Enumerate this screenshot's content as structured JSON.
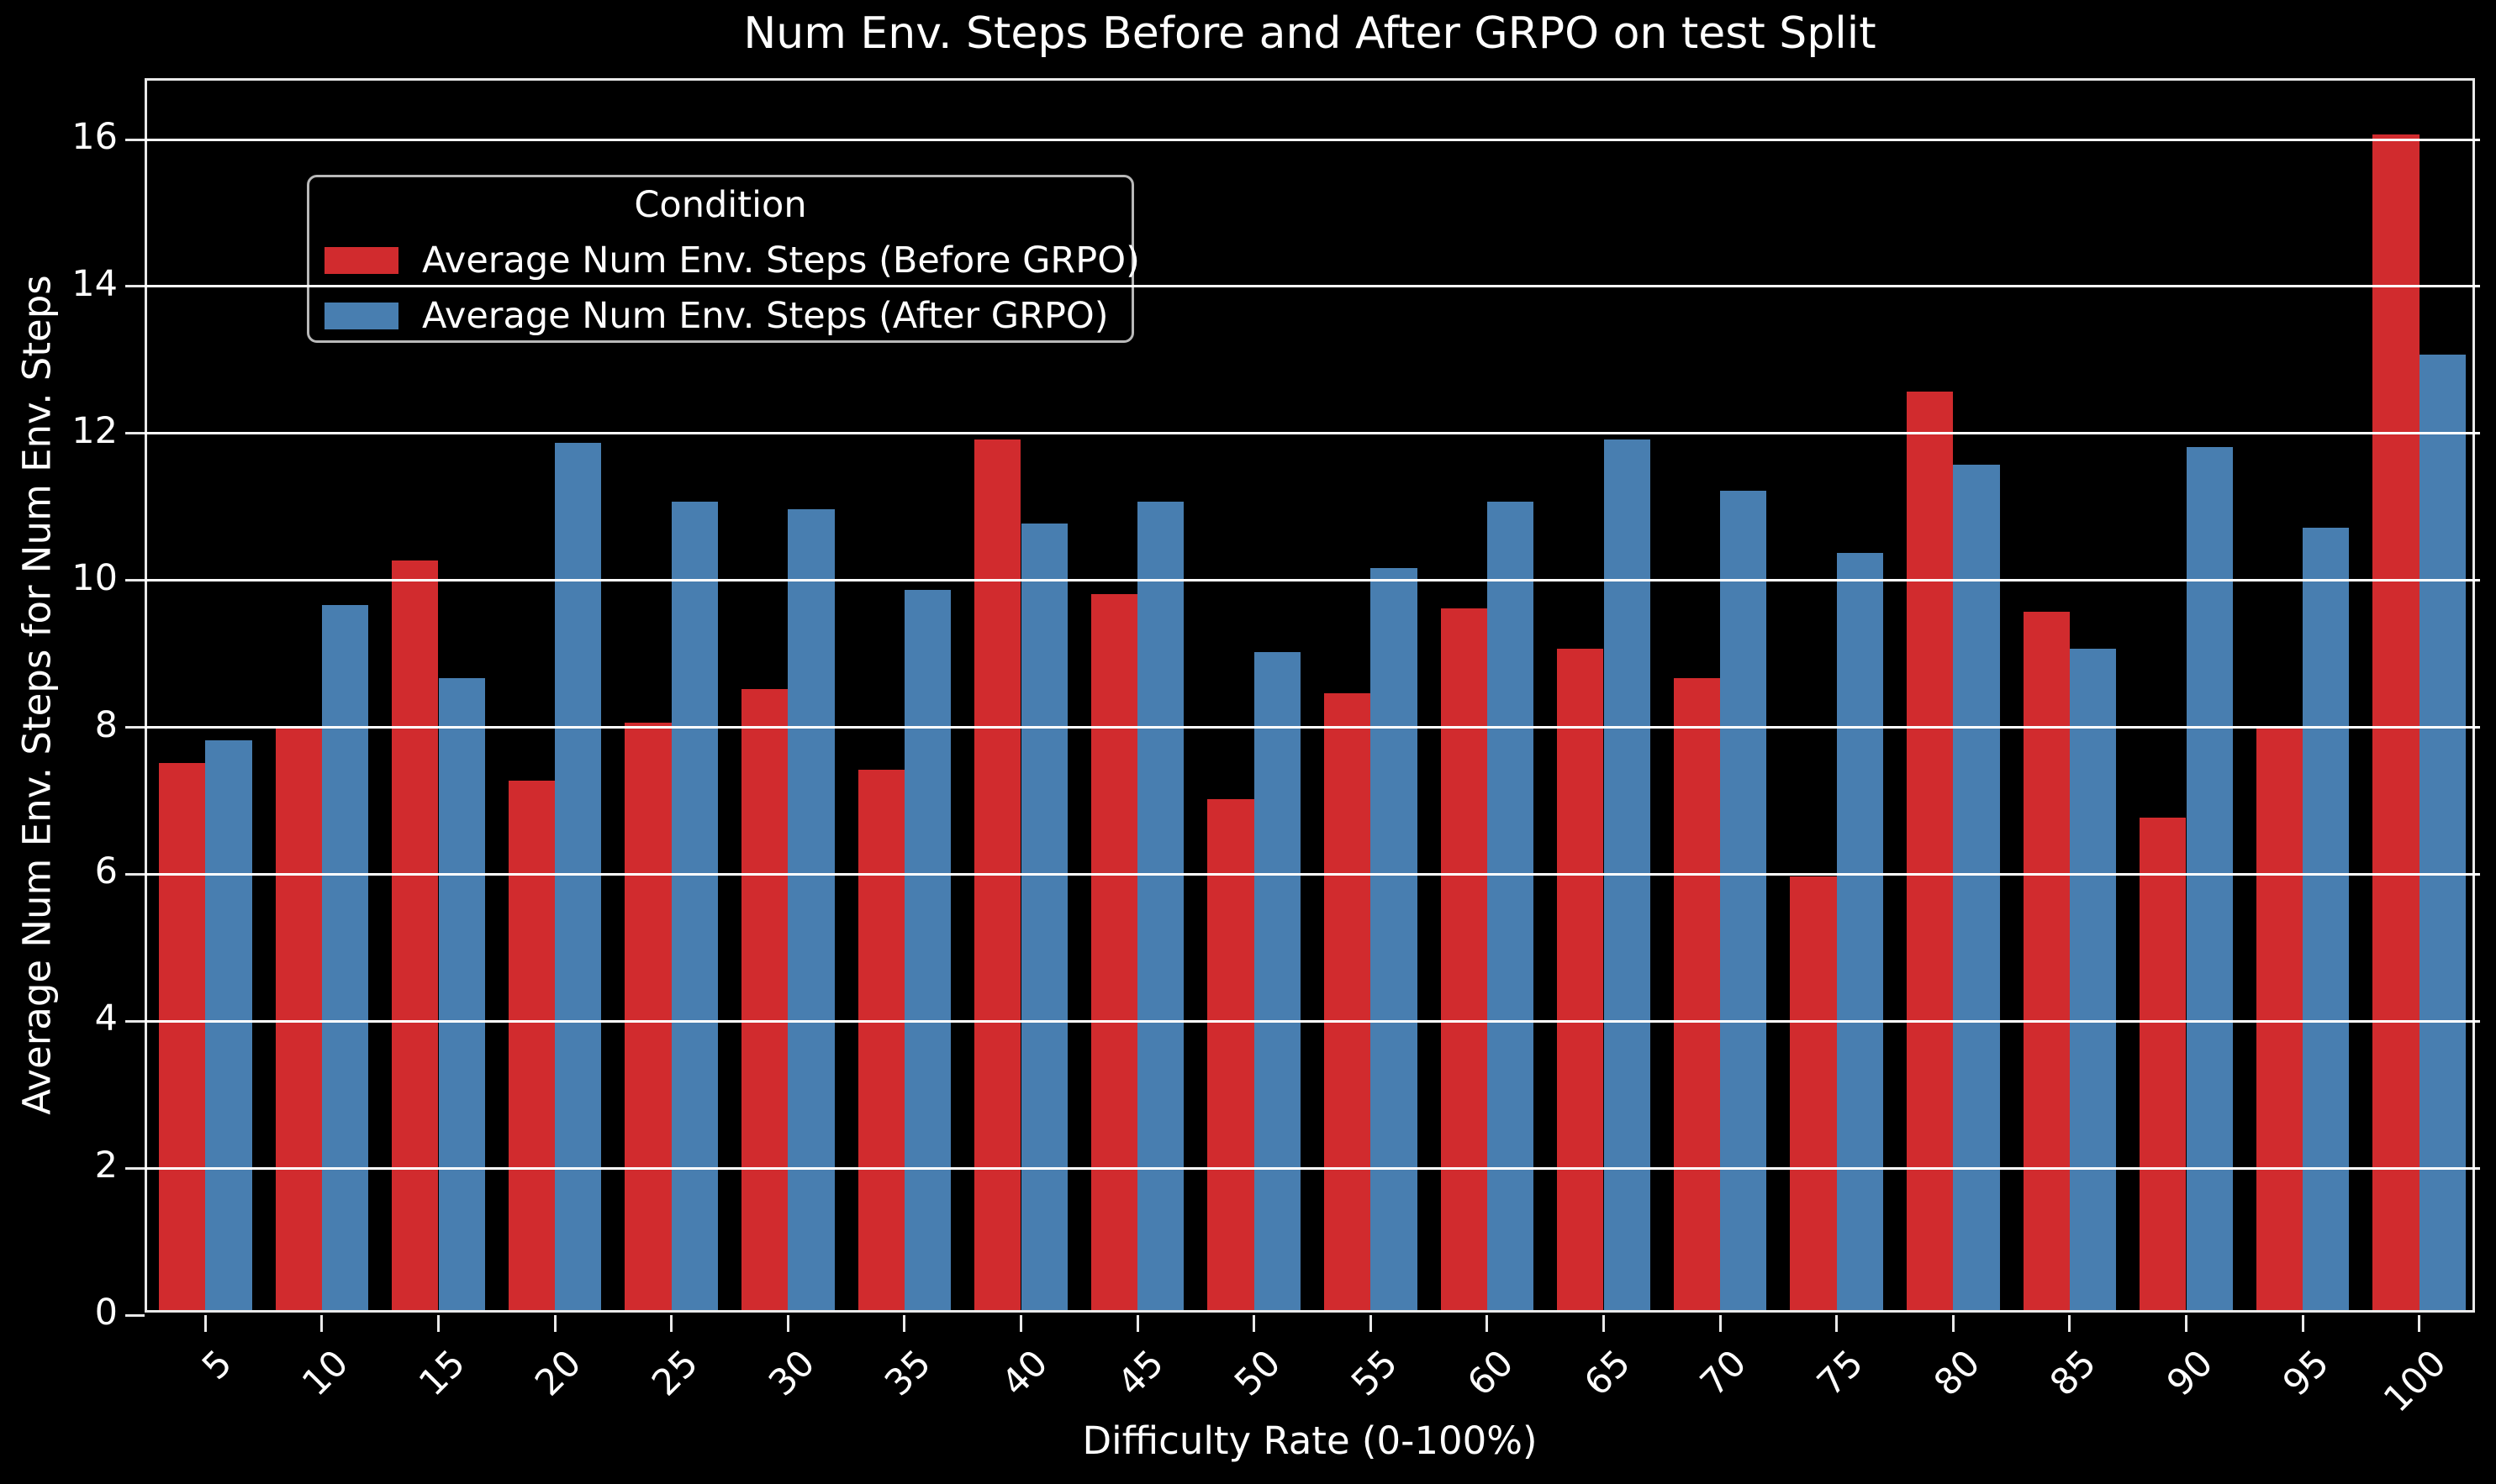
{
  "page": {
    "background": "#000000",
    "text_color": "#ffffff",
    "grid_color": "#ffffff"
  },
  "chart_data": {
    "type": "bar",
    "title": "Num Env. Steps Before and After GRPO on test Split",
    "xlabel": "Difficulty Rate (0-100%)",
    "ylabel": "Average Num Env. Steps for Num Env. Steps",
    "legend_title": "Condition",
    "legend_position": "upper left",
    "grid": true,
    "grid_above_bars": true,
    "categories": [
      5,
      10,
      15,
      20,
      25,
      30,
      35,
      40,
      45,
      50,
      55,
      60,
      65,
      70,
      75,
      80,
      85,
      90,
      95,
      100
    ],
    "series": [
      {
        "name": "Average Num Env. Steps (Before GRPO)",
        "color": "#d12b2e",
        "values": [
          7.45,
          7.95,
          10.2,
          7.2,
          8.0,
          8.45,
          7.35,
          11.85,
          9.75,
          6.95,
          8.4,
          9.55,
          9.0,
          8.6,
          5.9,
          12.5,
          9.5,
          6.7,
          7.95,
          16.0
        ]
      },
      {
        "name": "Average Num Env. Steps (After GRPO)",
        "color": "#487eb0",
        "values": [
          7.75,
          9.6,
          8.6,
          11.8,
          11.0,
          10.9,
          9.8,
          10.7,
          11.0,
          8.95,
          10.1,
          11.0,
          11.85,
          11.15,
          10.3,
          11.5,
          9.0,
          11.75,
          10.65,
          13.0
        ]
      }
    ],
    "ylim": [
      0,
      16.8
    ],
    "yticks": [
      0,
      2,
      4,
      6,
      8,
      10,
      12,
      14,
      16
    ],
    "bar_group_width_fraction": 0.8
  }
}
